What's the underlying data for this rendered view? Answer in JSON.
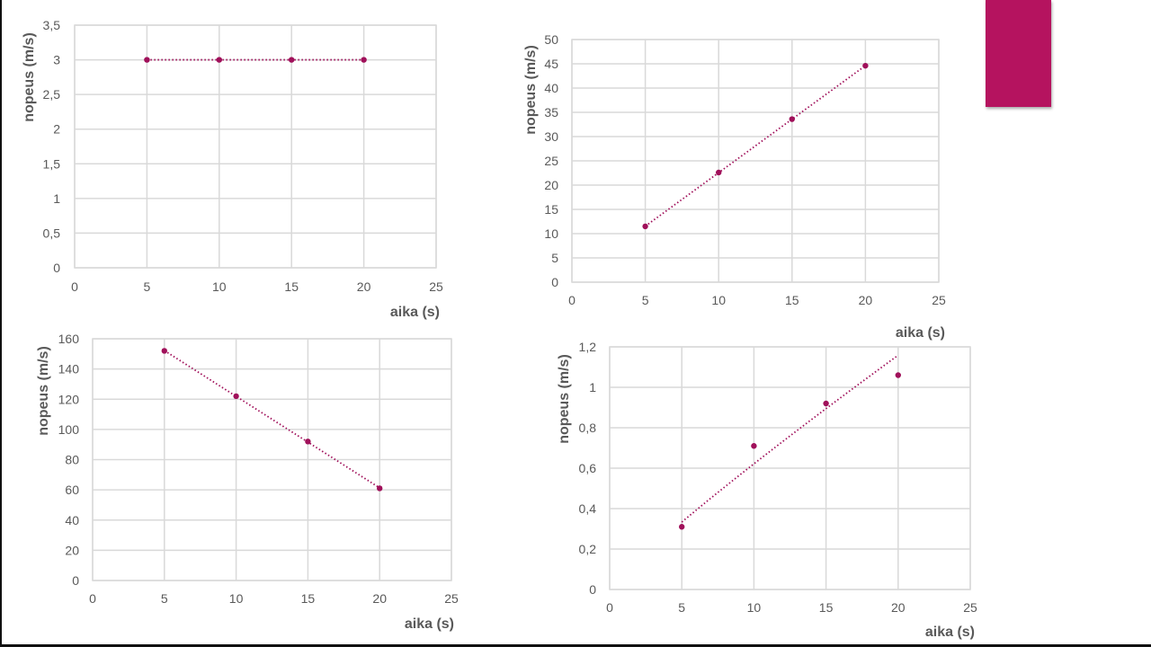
{
  "accent_color": "#B5135F",
  "series_color": "#A0105A",
  "grid_color": "#D9D9D9",
  "chart_data": [
    {
      "type": "scatter",
      "trendline": "linear",
      "x": [
        5,
        10,
        15,
        20
      ],
      "y": [
        3,
        3,
        3,
        3
      ],
      "xlabel": "aika (s)",
      "ylabel": "nopeus (m/s)",
      "xlim": [
        0,
        25
      ],
      "ylim": [
        0,
        3.5
      ],
      "xticks": [
        "0",
        "5",
        "10",
        "15",
        "20",
        "25"
      ],
      "yticks": [
        "0",
        "0,5",
        "1",
        "1,5",
        "2",
        "2,5",
        "3",
        "3,5"
      ],
      "grid": true
    },
    {
      "type": "scatter",
      "trendline": "linear",
      "x": [
        5,
        10,
        15,
        20
      ],
      "y": [
        11.5,
        22.6,
        33.6,
        44.6
      ],
      "xlabel": "aika (s)",
      "ylabel": "nopeus (m/s)",
      "xlim": [
        0,
        25
      ],
      "ylim": [
        0,
        50
      ],
      "xticks": [
        "0",
        "5",
        "10",
        "15",
        "20",
        "25"
      ],
      "yticks": [
        "0",
        "5",
        "10",
        "15",
        "20",
        "25",
        "30",
        "35",
        "40",
        "45",
        "50"
      ],
      "grid": true
    },
    {
      "type": "scatter",
      "trendline": "linear",
      "x": [
        5,
        10,
        15,
        20
      ],
      "y": [
        152,
        122,
        92,
        61
      ],
      "xlabel": "aika (s)",
      "ylabel": "nopeus (m/s)",
      "xlim": [
        0,
        25
      ],
      "ylim": [
        0,
        160
      ],
      "xticks": [
        "0",
        "5",
        "10",
        "15",
        "20",
        "25"
      ],
      "yticks": [
        "0",
        "20",
        "40",
        "60",
        "80",
        "100",
        "120",
        "140",
        "160"
      ],
      "grid": true
    },
    {
      "type": "scatter",
      "trendline": "power",
      "x": [
        5,
        10,
        15,
        20
      ],
      "y": [
        0.31,
        0.71,
        0.92,
        1.06
      ],
      "xlabel": "aika (s)",
      "ylabel": "nopeus (m/s)",
      "xlim": [
        0,
        25
      ],
      "ylim": [
        0,
        1.2
      ],
      "xticks": [
        "0",
        "5",
        "10",
        "15",
        "20",
        "25"
      ],
      "yticks": [
        "0",
        "0,2",
        "0,4",
        "0,6",
        "0,8",
        "1",
        "1,2"
      ],
      "grid": true
    }
  ]
}
